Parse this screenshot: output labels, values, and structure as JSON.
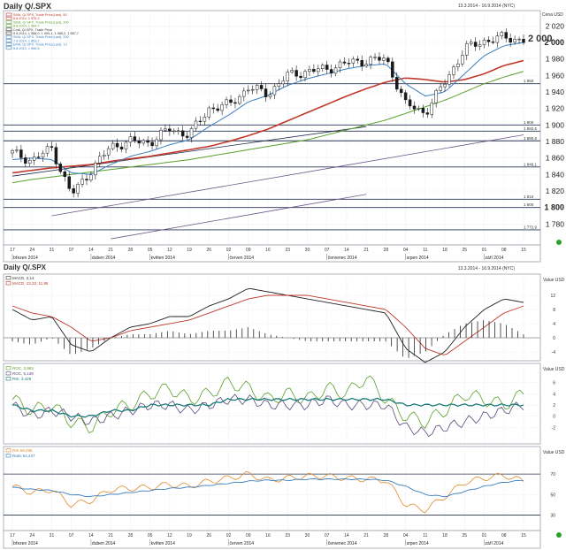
{
  "header": {
    "title": "Daily Q/.SPX",
    "date_range": "13.3.2014 - 16.9.2014 (NYC)"
  },
  "price_panel": {
    "legend": [
      {
        "text": "SMA, Q/.SPX, Trade Price(Last), 50",
        "color": "#c0392b"
      },
      {
        "text": "8.8.2014, 1 976,3",
        "color": "#c0392b"
      },
      {
        "text": "SMA, Q/.SPX, Trade Price(Last), 200",
        "color": "#5aa02c"
      },
      {
        "text": "8.8.2014, 1 984,7",
        "color": "#5aa02c"
      },
      {
        "text": "Cndl, Q/.SPX, Trade Price",
        "color": "#333333"
      },
      {
        "text": "9.9.2014, 1 988,0, 1 993,1, 1 985,2, 1 987,7",
        "color": "#333333"
      },
      {
        "text": "SMA, Q/.SPX, Trade Price(Last), 200",
        "color": "#3a7fc0"
      },
      {
        "text": "7.9.2014, 1 853,1",
        "color": "#3a7fc0"
      },
      {
        "text": "EMA, Q/.SPX, Trade Price(Last), 13",
        "color": "#3a7fc0"
      },
      {
        "text": "8.8.2014, 1 966,6",
        "color": "#3a7fc0"
      }
    ],
    "unit": "Cena USD",
    "last_price": "2 000",
    "hline_labels": [
      "1 950",
      "1 900",
      "1 892,5",
      "1 880,8",
      "1 849,1",
      "1 810",
      "1 800",
      "1 772,9"
    ]
  },
  "macd_panel": {
    "legend": [
      {
        "text": "MACD, 2,14",
        "color": "#333333"
      },
      {
        "text": "MACD, 13,33, 11,95",
        "color": "#c0392b"
      }
    ],
    "unit": "Value USD"
  },
  "roc_panel": {
    "legend": [
      {
        "text": "ROC, 3,983",
        "color": "#5aa02c"
      },
      {
        "text": "ROC, 5,139",
        "color": "#5a4a7a"
      },
      {
        "text": "RSI, 3,429",
        "color": "#1a7a7a"
      }
    ],
    "unit": "Value USD"
  },
  "rsi_panel": {
    "legend": [
      {
        "text": "RSI 59,295",
        "color": "#e08a2a"
      },
      {
        "text": "Ratio 64,437",
        "color": "#3a7fc0"
      }
    ],
    "unit": "Value USD"
  },
  "x_axis": {
    "day_ticks": [
      "17",
      "24",
      "31",
      "07",
      "14",
      "21",
      "28",
      "05",
      "12",
      "19",
      "26",
      "02",
      "09",
      "16",
      "23",
      "30",
      "07",
      "14",
      "21",
      "28",
      "04",
      "11",
      "18",
      "25",
      "01",
      "08",
      "15"
    ],
    "month_labels": [
      "březen 2014",
      "duben 2014",
      "květen 2014",
      "červen 2014",
      "červenec 2014",
      "srpen 2014",
      "září 2014"
    ]
  },
  "chart_data": [
    {
      "type": "candlestick",
      "title": "Daily Q/.SPX",
      "ylim": [
        1760,
        2030
      ],
      "yticks": [
        1780,
        1800,
        1820,
        1840,
        1860,
        1880,
        1900,
        1920,
        1940,
        1960,
        1980,
        2000,
        2020
      ],
      "ytick_labels": [
        "1 780",
        "1 800",
        "1 820",
        "1 840",
        "1 860",
        "1 880",
        "1 900",
        "1 920",
        "1 940",
        "1 960",
        "1 980",
        "2 000",
        "2 020"
      ],
      "x": [
        "17.3.",
        "24.3.",
        "31.3.",
        "7.4.",
        "14.4.",
        "21.4.",
        "28.4.",
        "5.5.",
        "12.5.",
        "19.5.",
        "26.5.",
        "2.6.",
        "9.6.",
        "16.6.",
        "23.6.",
        "30.6.",
        "7.7.",
        "14.7.",
        "21.7.",
        "28.7.",
        "4.8.",
        "11.8.",
        "18.8.",
        "25.8.",
        "1.9.",
        "8.9.",
        "15.9."
      ],
      "close": [
        1866,
        1857,
        1872,
        1815,
        1845,
        1874,
        1880,
        1879,
        1895,
        1888,
        1920,
        1924,
        1945,
        1938,
        1960,
        1965,
        1968,
        1975,
        1978,
        1980,
        1925,
        1915,
        1952,
        1992,
        2002,
        2006,
        2003
      ],
      "series": [
        {
          "name": "SMA 50",
          "values": [
            1842,
            1845,
            1848,
            1850,
            1852,
            1856,
            1859,
            1862,
            1866,
            1870,
            1874,
            1880,
            1887,
            1895,
            1905,
            1915,
            1925,
            1935,
            1944,
            1952,
            1957,
            1955,
            1952,
            1955,
            1962,
            1972,
            1978
          ]
        },
        {
          "name": "SMA 200",
          "values": [
            1830,
            1834,
            1837,
            1840,
            1843,
            1846,
            1849,
            1852,
            1855,
            1858,
            1862,
            1866,
            1870,
            1874,
            1878,
            1882,
            1888,
            1894,
            1900,
            1906,
            1914,
            1922,
            1930,
            1940,
            1950,
            1958,
            1965
          ]
        },
        {
          "name": "EMA 13",
          "values": [
            1858,
            1860,
            1858,
            1842,
            1840,
            1852,
            1862,
            1868,
            1876,
            1882,
            1898,
            1912,
            1928,
            1936,
            1948,
            1956,
            1962,
            1968,
            1972,
            1974,
            1950,
            1935,
            1940,
            1962,
            1984,
            1996,
            2000
          ]
        }
      ],
      "hlines": [
        1950,
        1900,
        1892.5,
        1880.8,
        1849.1,
        1810,
        1800,
        1772.9
      ]
    },
    {
      "type": "bar+line",
      "title": "MACD",
      "ylim": [
        -5,
        16
      ],
      "yticks": [
        -4,
        0,
        4,
        8,
        12
      ],
      "ytick_labels": [
        "-4",
        "0",
        "4",
        "8",
        "12"
      ],
      "x": [
        "17.3.",
        "24.3.",
        "31.3.",
        "7.4.",
        "14.4.",
        "21.4.",
        "28.4.",
        "5.5.",
        "12.5.",
        "19.5.",
        "26.5.",
        "2.6.",
        "9.6.",
        "16.6.",
        "23.6.",
        "30.6.",
        "7.7.",
        "14.7.",
        "21.7.",
        "28.7.",
        "4.8.",
        "11.8.",
        "18.8.",
        "25.8.",
        "1.9.",
        "8.9.",
        "15.9."
      ],
      "series": [
        {
          "name": "MACD",
          "values": [
            8,
            5,
            6,
            -2,
            -4,
            0,
            3,
            4,
            6,
            6,
            9,
            11,
            14,
            13,
            12,
            11,
            10,
            9,
            8,
            7,
            -3,
            -7,
            -4,
            3,
            8,
            11,
            10
          ]
        },
        {
          "name": "Signal",
          "values": [
            9,
            7,
            6,
            3,
            -1,
            0,
            2,
            3,
            4,
            5,
            7,
            9,
            11,
            12,
            12,
            12,
            11,
            10,
            9,
            8,
            3,
            -3,
            -5,
            -1,
            3,
            7,
            9
          ]
        },
        {
          "name": "Histogram",
          "values": [
            -1,
            -2,
            0,
            -5,
            -3,
            0,
            1,
            1,
            2,
            1,
            2,
            2,
            3,
            1,
            0,
            -1,
            -1,
            -1,
            -1,
            -1,
            -6,
            -4,
            1,
            4,
            5,
            4,
            1
          ]
        }
      ]
    },
    {
      "type": "line",
      "title": "ROC",
      "ylim": [
        -4,
        8
      ],
      "yticks": [
        -2,
        0,
        2,
        4,
        6
      ],
      "ytick_labels": [
        "-2",
        "0",
        "2",
        "4",
        "6"
      ],
      "x": [
        "17.3.",
        "24.3.",
        "31.3.",
        "7.4.",
        "14.4.",
        "21.4.",
        "28.4.",
        "5.5.",
        "12.5.",
        "19.5.",
        "26.5.",
        "2.6.",
        "9.6.",
        "16.6.",
        "23.6.",
        "30.6.",
        "7.7.",
        "14.7.",
        "21.7.",
        "28.7.",
        "4.8.",
        "11.8.",
        "18.8.",
        "25.8.",
        "1.9.",
        "8.9.",
        "15.9."
      ],
      "series": [
        {
          "name": "ROC 3,983",
          "values": [
            3,
            1,
            2,
            -1,
            -2,
            1,
            2,
            4,
            5,
            3,
            4,
            6,
            5,
            3,
            4,
            3,
            5,
            4,
            7,
            3,
            0,
            -1,
            1,
            4,
            3,
            2,
            4
          ]
        },
        {
          "name": "ROC 5,139",
          "values": [
            2,
            0,
            1,
            0,
            -1,
            0,
            1,
            2,
            2,
            1,
            2,
            3,
            3,
            2,
            2,
            2,
            3,
            2,
            2,
            2,
            -2,
            -3,
            -2,
            -1,
            0,
            1,
            2
          ]
        },
        {
          "name": "RSI 3,429",
          "values": [
            2,
            1,
            1,
            0,
            0,
            1,
            1,
            2,
            2,
            2,
            2,
            3,
            3,
            3,
            3,
            3,
            3,
            3,
            3,
            3,
            2,
            2,
            2,
            2,
            2,
            2,
            2
          ]
        }
      ]
    },
    {
      "type": "line",
      "title": "RSI",
      "ylim": [
        20,
        90
      ],
      "yticks": [
        30,
        50,
        70
      ],
      "ytick_labels": [
        "30",
        "50",
        "70"
      ],
      "x": [
        "17.3.",
        "24.3.",
        "31.3.",
        "7.4.",
        "14.4.",
        "21.4.",
        "28.4.",
        "5.5.",
        "12.5.",
        "19.5.",
        "26.5.",
        "2.6.",
        "9.6.",
        "16.6.",
        "23.6.",
        "30.6.",
        "7.7.",
        "14.7.",
        "21.7.",
        "28.7.",
        "4.8.",
        "11.8.",
        "18.8.",
        "25.8.",
        "1.9.",
        "8.9.",
        "15.9."
      ],
      "series": [
        {
          "name": "RSI",
          "values": [
            58,
            52,
            55,
            40,
            44,
            55,
            56,
            57,
            60,
            58,
            63,
            66,
            70,
            64,
            66,
            68,
            68,
            66,
            65,
            64,
            40,
            35,
            48,
            62,
            66,
            69,
            63
          ]
        },
        {
          "name": "Ratio",
          "values": [
            57,
            55,
            54,
            50,
            48,
            50,
            52,
            54,
            56,
            57,
            59,
            61,
            63,
            64,
            64,
            65,
            65,
            65,
            65,
            64,
            58,
            50,
            48,
            53,
            58,
            62,
            64
          ]
        }
      ],
      "hlines": [
        70,
        30
      ]
    }
  ]
}
